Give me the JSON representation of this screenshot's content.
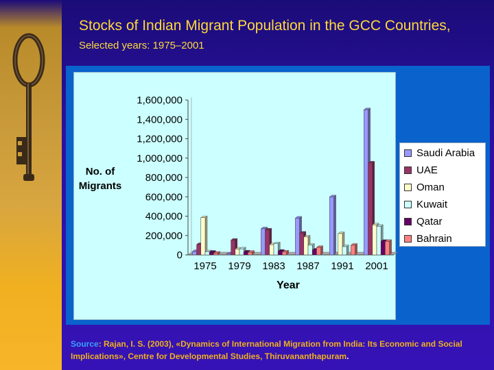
{
  "slide": {
    "title_main": "Stocks of Indian Migrant Population in the GCC Countries,",
    "title_sub": "Selected years: 1975–2001"
  },
  "source": {
    "label": "Source",
    "text": ": Rajan, I. S. (2003), «Dynamics of International Migration from India: Its Economic and Social Implications», Centre for Developmental Studies, Thiruvananthapuram",
    "end": "."
  },
  "icons": {
    "decoration": "antique-key-icon"
  },
  "colors": {
    "title": "#ffd93a",
    "source": "#f0b020",
    "source_label": "#3aa0ff",
    "plot_background": "#ccffff",
    "chart_frame": "#0a62cc"
  },
  "chart_data": {
    "type": "bar",
    "style": "3d-clustered",
    "title": "",
    "xlabel": "Year",
    "ylabel": "No. of Migrants",
    "categories": [
      "1975",
      "1979",
      "1983",
      "1987",
      "1991",
      "2001"
    ],
    "ylim": [
      0,
      1600000
    ],
    "yticks": [
      "0",
      "200,000",
      "400,000",
      "600,000",
      "800,000",
      "1,000,000",
      "1,200,000",
      "1,400,000",
      "1,600,000"
    ],
    "grid": false,
    "legend_position": "right",
    "series": [
      {
        "name": "Saudi Arabia",
        "color": "#9999ff",
        "values": [
          35000,
          10000,
          270000,
          380000,
          600000,
          1500000
        ]
      },
      {
        "name": "UAE",
        "color": "#993366",
        "values": [
          107000,
          152000,
          258000,
          225000,
          0,
          950000
        ]
      },
      {
        "name": "Oman",
        "color": "#ffffcc",
        "values": [
          385000,
          60000,
          105000,
          185000,
          220000,
          310000
        ]
      },
      {
        "name": "Kuwait",
        "color": "#ccffff",
        "values": [
          32000,
          62000,
          115000,
          100000,
          85000,
          295000
        ]
      },
      {
        "name": "Qatar",
        "color": "#660066",
        "values": [
          28000,
          30000,
          38000,
          50000,
          0,
          140000
        ]
      },
      {
        "name": "Bahrain",
        "color": "#ff8080",
        "values": [
          18000,
          27000,
          30000,
          77000,
          100000,
          140000
        ]
      }
    ]
  }
}
